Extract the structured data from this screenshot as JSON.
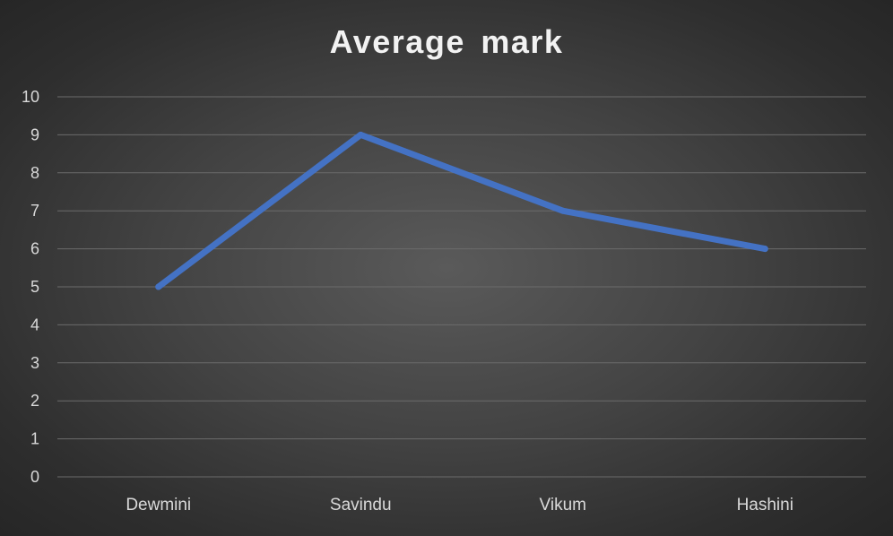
{
  "chart_data": {
    "type": "line",
    "title": "Average mark",
    "categories": [
      "Dewmini",
      "Savindu",
      "Vikum",
      "Hashini"
    ],
    "series": [
      {
        "values": [
          5,
          9,
          7,
          6
        ],
        "color": "#4472c4"
      }
    ],
    "xlabel": "",
    "ylabel": "",
    "ylim": [
      0,
      10
    ],
    "yticks": [
      "0",
      "1",
      "2",
      "3",
      "4",
      "5",
      "6",
      "7",
      "8",
      "9",
      "10"
    ],
    "grid": true,
    "legend": "none"
  },
  "colors": {
    "line": "#4472c4",
    "text": "#d9d9d9",
    "title": "#f2f2f2",
    "grid": "#6b6b6b"
  }
}
